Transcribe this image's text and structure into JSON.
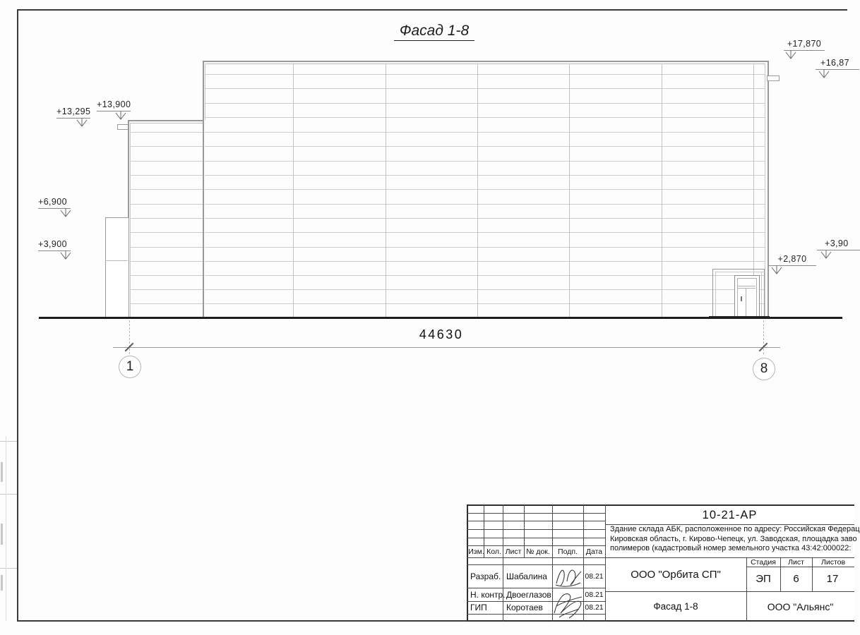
{
  "drawing": {
    "title": "Фасад 1-8",
    "total_dimension": "44630",
    "axis_left": "1",
    "axis_right": "8",
    "elevation_marks": [
      {
        "label": "+13,295"
      },
      {
        "label": "+13,900"
      },
      {
        "label": "+6,900"
      },
      {
        "label": "+3,900"
      },
      {
        "label": "+17,870"
      },
      {
        "label": "+16,87"
      },
      {
        "label": "+3,90"
      },
      {
        "label": "+2,870"
      }
    ]
  },
  "title_block": {
    "doc_code": "10-21-АР",
    "description_lines": [
      "Здание склада АБК, расположенное по адресу: Российская Федерац",
      "Кировская область, г. Кирово-Чепецк, ул. Заводская, площадка заво",
      "полимеров (кадастровый номер земельного участка 43:42:000022:"
    ],
    "column_headers": [
      "Изм.",
      "Кол.",
      "Лист",
      "№ док.",
      "Подп.",
      "Дата"
    ],
    "signers": [
      {
        "role": "Разраб.",
        "name": "Шабалина",
        "date": "08.21"
      },
      {
        "role": "Н. контр.",
        "name": "Двоеглазов",
        "date": "08.21"
      },
      {
        "role": "ГИП",
        "name": "Коротаев",
        "date": "08.21"
      }
    ],
    "stage_header": "Стадия",
    "sheet_header": "Лист",
    "sheets_header": "Листов",
    "stage": "ЭП",
    "sheet_number": "6",
    "sheet_count": "17",
    "organization": "ООО \"Орбита СП\"",
    "sheet_title": "Фасад 1-8",
    "contractor": "ООО \"Альянс\""
  }
}
